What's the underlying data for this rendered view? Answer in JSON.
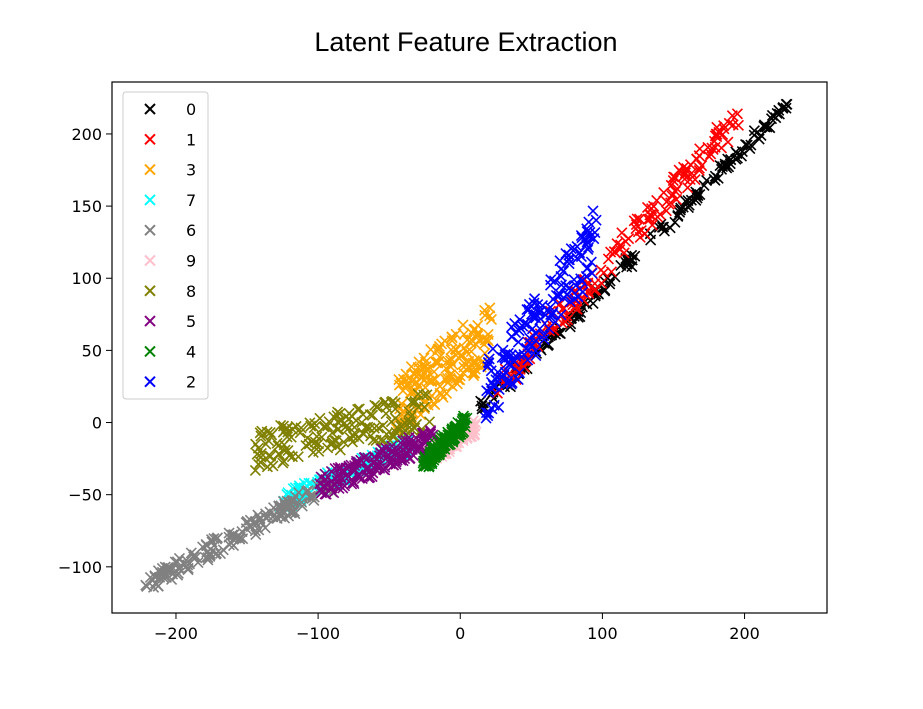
{
  "chart_data": {
    "type": "scatter",
    "title": "Latent Feature  Extraction",
    "xlabel": "",
    "ylabel": "",
    "xlim": [
      -245,
      258
    ],
    "ylim": [
      -132,
      236
    ],
    "xticks": [
      -200,
      -100,
      0,
      100,
      200
    ],
    "yticks": [
      -100,
      -50,
      0,
      50,
      100,
      150,
      200
    ],
    "xtick_labels": [
      "−200",
      "−100",
      "0",
      "100",
      "200"
    ],
    "ytick_labels": [
      "−100",
      "−50",
      "0",
      "50",
      "100",
      "150",
      "200"
    ],
    "grid": false,
    "marker": "x",
    "legend_position": "upper-left",
    "series": [
      {
        "name": "0",
        "color": "#000000",
        "x_range": [
          15,
          230
        ],
        "band": {
          "from": [
            15,
            10
          ],
          "to": [
            230,
            220
          ],
          "width": 4
        }
      },
      {
        "name": "1",
        "color": "#ff0000",
        "x_range": [
          28,
          195
        ],
        "band": {
          "from": [
            28,
            28
          ],
          "to": [
            195,
            210
          ],
          "width": 9
        }
      },
      {
        "name": "3",
        "color": "#ffa500",
        "x_range": [
          -45,
          22
        ],
        "band": {
          "from": [
            -45,
            12
          ],
          "to": [
            22,
            62
          ],
          "width": 20
        }
      },
      {
        "name": "7",
        "color": "#00ffff",
        "x_range": [
          -125,
          -35
        ],
        "band": {
          "from": [
            -125,
            -55
          ],
          "to": [
            -35,
            -15
          ],
          "width": 6
        }
      },
      {
        "name": "6",
        "color": "#808080",
        "x_range": [
          -220,
          -90
        ],
        "band": {
          "from": [
            -220,
            -112
          ],
          "to": [
            -90,
            -42
          ],
          "width": 6
        }
      },
      {
        "name": "9",
        "color": "#ffc0cb",
        "x_range": [
          -25,
          10
        ],
        "band": {
          "from": [
            -25,
            -25
          ],
          "to": [
            10,
            -3
          ],
          "width": 5
        }
      },
      {
        "name": "8",
        "color": "#808000",
        "x_range": [
          -145,
          -20
        ],
        "band": {
          "from": [
            -145,
            -20
          ],
          "to": [
            -20,
            8
          ],
          "width": 14
        }
      },
      {
        "name": "5",
        "color": "#800080",
        "x_range": [
          -100,
          -20
        ],
        "band": {
          "from": [
            -100,
            -45
          ],
          "to": [
            -20,
            -12
          ],
          "width": 8
        }
      },
      {
        "name": "4",
        "color": "#008000",
        "x_range": [
          -25,
          3
        ],
        "band": {
          "from": [
            -25,
            -28
          ],
          "to": [
            3,
            0
          ],
          "width": 5
        }
      },
      {
        "name": "2",
        "color": "#0000ff",
        "x_range": [
          18,
          95
        ],
        "band": {
          "from": [
            18,
            20
          ],
          "to": [
            95,
            125
          ],
          "width": 22
        }
      }
    ]
  }
}
